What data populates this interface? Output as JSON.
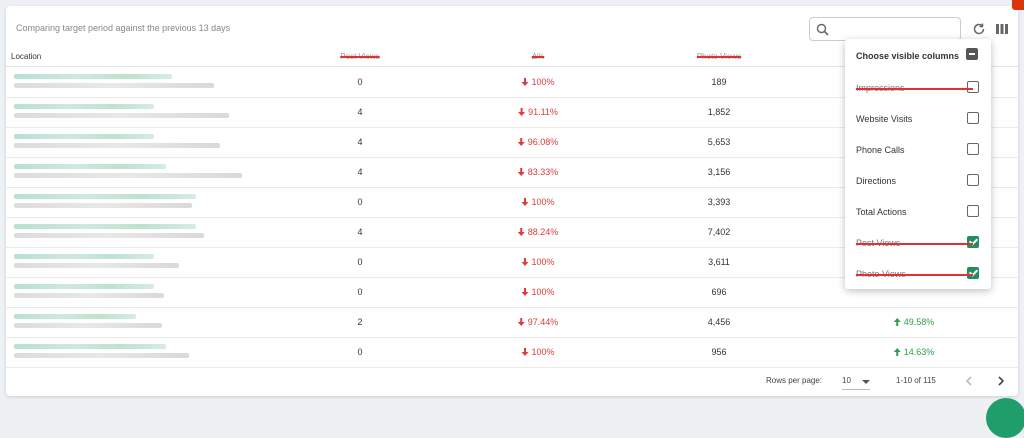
{
  "header": {
    "subtitle": "Comparing target period against the previous 13 days"
  },
  "search": {
    "placeholder": ""
  },
  "table": {
    "columns": {
      "location": "Location",
      "post_views": "Post Views",
      "delta": "Δ%",
      "photo_views": "Photo Views"
    },
    "rows": [
      {
        "post_views": "0",
        "delta": "100%",
        "delta_dir": "down",
        "photo_views": "189",
        "right_delta": "",
        "right_dir": ""
      },
      {
        "post_views": "4",
        "delta": "91.11%",
        "delta_dir": "down",
        "photo_views": "1,852",
        "right_delta": "",
        "right_dir": ""
      },
      {
        "post_views": "4",
        "delta": "96.08%",
        "delta_dir": "down",
        "photo_views": "5,653",
        "right_delta": "",
        "right_dir": ""
      },
      {
        "post_views": "4",
        "delta": "83.33%",
        "delta_dir": "down",
        "photo_views": "3,156",
        "right_delta": "",
        "right_dir": ""
      },
      {
        "post_views": "0",
        "delta": "100%",
        "delta_dir": "down",
        "photo_views": "3,393",
        "right_delta": "",
        "right_dir": ""
      },
      {
        "post_views": "4",
        "delta": "88.24%",
        "delta_dir": "down",
        "photo_views": "7,402",
        "right_delta": "",
        "right_dir": ""
      },
      {
        "post_views": "0",
        "delta": "100%",
        "delta_dir": "down",
        "photo_views": "3,611",
        "right_delta": "",
        "right_dir": ""
      },
      {
        "post_views": "0",
        "delta": "100%",
        "delta_dir": "down",
        "photo_views": "696",
        "right_delta": "",
        "right_dir": ""
      },
      {
        "post_views": "2",
        "delta": "97.44%",
        "delta_dir": "down",
        "photo_views": "4,456",
        "right_delta": "49.58%",
        "right_dir": "up"
      },
      {
        "post_views": "0",
        "delta": "100%",
        "delta_dir": "down",
        "photo_views": "956",
        "right_delta": "14.63%",
        "right_dir": "up"
      }
    ]
  },
  "footer": {
    "rows_per_page_label": "Rows per page:",
    "rows_per_page_value": "10",
    "range": "1-10 of 115"
  },
  "column_panel": {
    "title": "Choose visible columns",
    "options": [
      {
        "label": "Impressions",
        "checked": false,
        "struck": true
      },
      {
        "label": "Website Visits",
        "checked": false,
        "struck": false
      },
      {
        "label": "Phone Calls",
        "checked": false,
        "struck": false
      },
      {
        "label": "Directions",
        "checked": false,
        "struck": false
      },
      {
        "label": "Total Actions",
        "checked": false,
        "struck": false
      },
      {
        "label": "Post Views",
        "checked": true,
        "struck": true
      },
      {
        "label": "Photo Views",
        "checked": true,
        "struck": true
      }
    ]
  },
  "colors": {
    "accent": "#1f8f5f",
    "negative": "#e03a3a",
    "positive": "#2e9e4f",
    "strike": "#d33333"
  },
  "icons": {
    "search": "search-icon",
    "refresh": "refresh-icon",
    "columns": "columns-icon",
    "prev": "chevron-left-icon",
    "next": "chevron-right-icon",
    "down": "arrow-down-icon",
    "up": "arrow-up-icon"
  }
}
